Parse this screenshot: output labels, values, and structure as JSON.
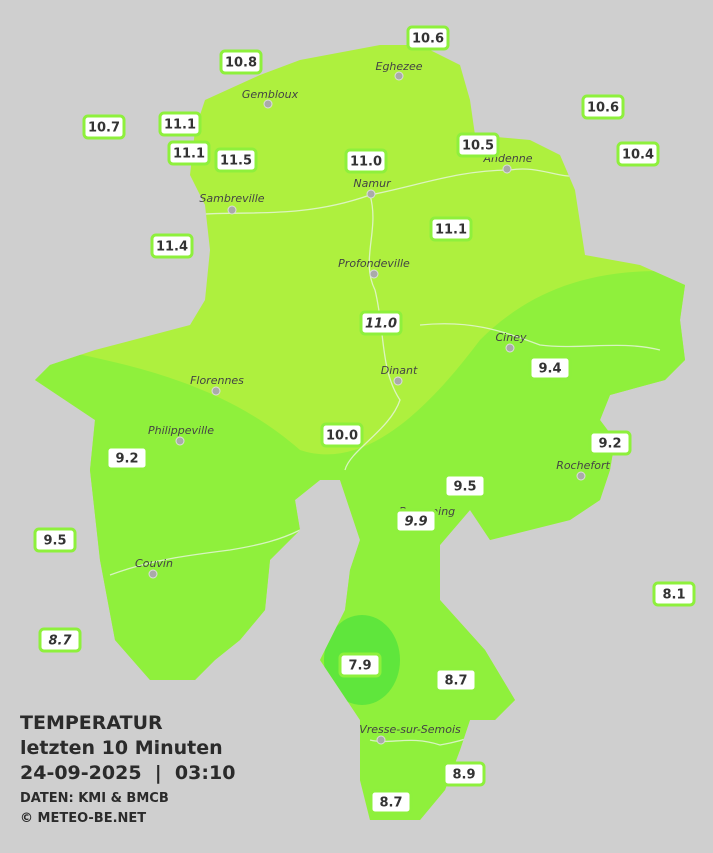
{
  "title": "TEMPERATUR",
  "subtitle": "letzten 10 Minuten",
  "timestamp": "24-09-2025  |  03:10",
  "source": "DATEN: KMI & BMCB",
  "copyright": "© METEO-BE.NET",
  "cities": [
    "Eghezee",
    "Gembloux",
    "Andenne",
    "Namur",
    "Sambreville",
    "Profondeville",
    "Ciney",
    "Dinant",
    "Florennes",
    "Philippeville",
    "Rochefort",
    "Beauraing",
    "Couvin",
    "Vresse-sur-Semois"
  ],
  "stations": [
    "10.6",
    "10.8",
    "10.6",
    "10.7",
    "11.1",
    "11.1",
    "11.5",
    "11.0",
    "10.5",
    "10.4",
    "11.1",
    "11.4",
    "11.0",
    "9.4",
    "10.0",
    "9.2",
    "9.2",
    "9.5",
    "9.9",
    "9.5",
    "8.1",
    "8.7",
    "7.9",
    "8.7",
    "8.9",
    "8.7"
  ]
}
